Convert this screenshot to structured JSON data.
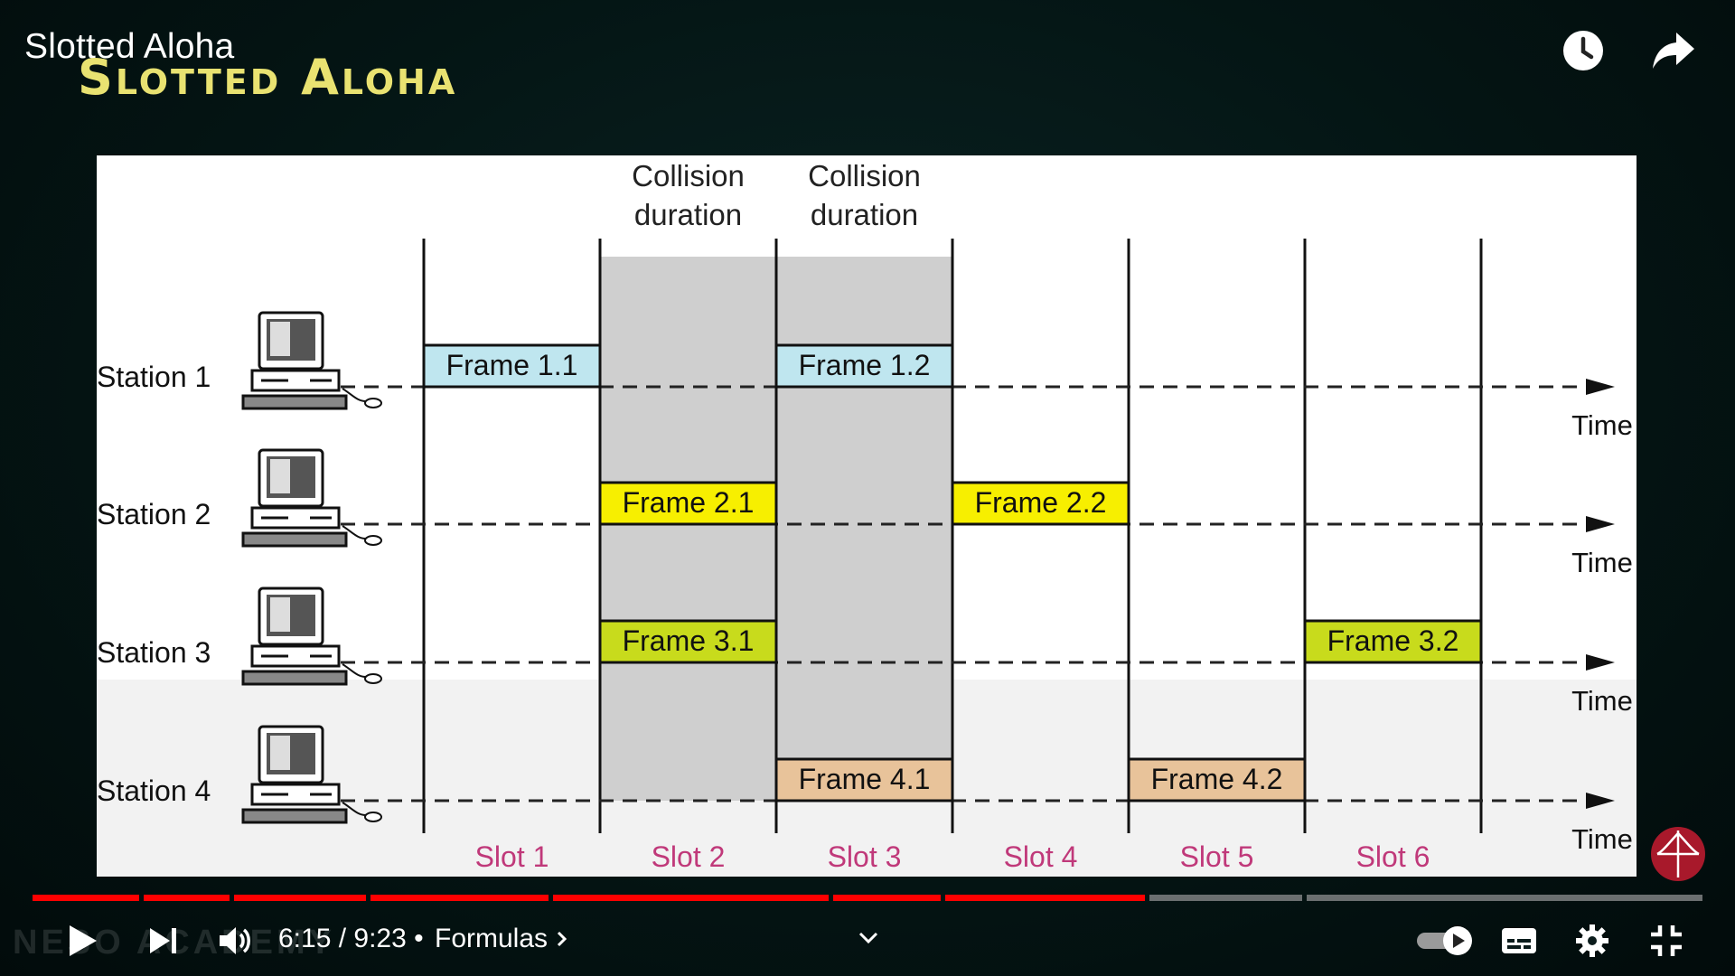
{
  "video": {
    "title": "Slotted Aloha",
    "current_time": "6:15",
    "duration": "9:23",
    "separator": "•",
    "chapter": "Formulas",
    "progress_fraction": 0.668,
    "watermark": "NESO ACADEMY"
  },
  "slide": {
    "heading": "Slotted Aloha",
    "collision_labels": [
      "Collision duration",
      "Collision duration"
    ],
    "stations": [
      {
        "label": "Station 1",
        "time_label": "Time"
      },
      {
        "label": "Station 2",
        "time_label": "Time"
      },
      {
        "label": "Station 3",
        "time_label": "Time"
      },
      {
        "label": "Station 4",
        "time_label": "Time"
      }
    ],
    "slots": [
      "Slot 1",
      "Slot 2",
      "Slot 3",
      "Slot 4",
      "Slot 5",
      "Slot 6"
    ],
    "frames": [
      {
        "label": "Frame 1.1",
        "station": 1,
        "slot": 1,
        "color": "#bfe6ef"
      },
      {
        "label": "Frame 1.2",
        "station": 1,
        "slot": 3,
        "color": "#bfe6ef"
      },
      {
        "label": "Frame 2.1",
        "station": 2,
        "slot": 2,
        "color": "#f7ef00"
      },
      {
        "label": "Frame 2.2",
        "station": 2,
        "slot": 4,
        "color": "#f7ef00"
      },
      {
        "label": "Frame 3.1",
        "station": 3,
        "slot": 2,
        "color": "#c8db1c"
      },
      {
        "label": "Frame 3.2",
        "station": 3,
        "slot": 6,
        "color": "#c8db1c"
      },
      {
        "label": "Frame 4.1",
        "station": 4,
        "slot": 3,
        "color": "#e8c39a"
      },
      {
        "label": "Frame 4.2",
        "station": 4,
        "slot": 5,
        "color": "#e8c39a"
      }
    ],
    "collision_slots": [
      2,
      3
    ],
    "slot_label_color": "#c0397a"
  },
  "colors": {
    "accent": "#ff0000",
    "heading": "#e9e271"
  },
  "icons": {
    "watch_later": "clock-icon",
    "share": "share-icon",
    "play": "play-icon",
    "next": "next-icon",
    "volume": "volume-icon",
    "chapter_chevron": "chevron-right-icon",
    "expand": "chevron-down-icon",
    "autoplay": "autoplay-toggle-icon",
    "captions": "captions-icon",
    "settings": "gear-icon",
    "fullscreen_exit": "exit-fullscreen-icon"
  }
}
